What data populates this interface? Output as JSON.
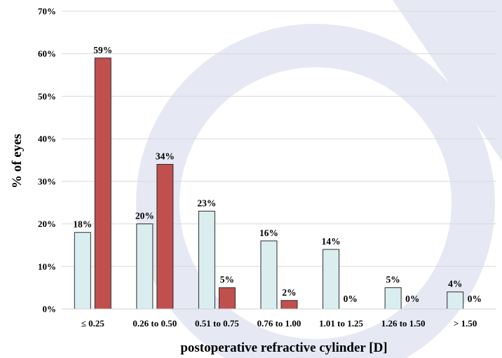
{
  "chart_data": {
    "type": "bar",
    "title": "",
    "xlabel": "postoperative refractive cylinder [D]",
    "ylabel": "% of eyes",
    "ylim": [
      0,
      70
    ],
    "yticks": [
      "0%",
      "10%",
      "20%",
      "30%",
      "40%",
      "50%",
      "60%",
      "70%"
    ],
    "grid": true,
    "legend": "none",
    "categories": [
      "≤ 0.25",
      "0.26 to 0.50",
      "0.51 to 0.75",
      "0.76 to 1.00",
      "1.01 to 1.25",
      "1.26 to 1.50",
      "> 1.50"
    ],
    "series": [
      {
        "color": "#daeef0",
        "values": [
          18,
          20,
          23,
          16,
          14,
          5,
          4
        ],
        "labels": [
          "18%",
          "20%",
          "23%",
          "16%",
          "14%",
          "5%",
          "4%"
        ]
      },
      {
        "color": "#c0504d",
        "values": [
          59,
          34,
          5,
          2,
          0,
          0,
          0
        ],
        "labels": [
          "59%",
          "34%",
          "5%",
          "2%",
          "0%",
          "0%",
          "0%"
        ]
      }
    ]
  },
  "watermark_color": "#e6e8f4"
}
